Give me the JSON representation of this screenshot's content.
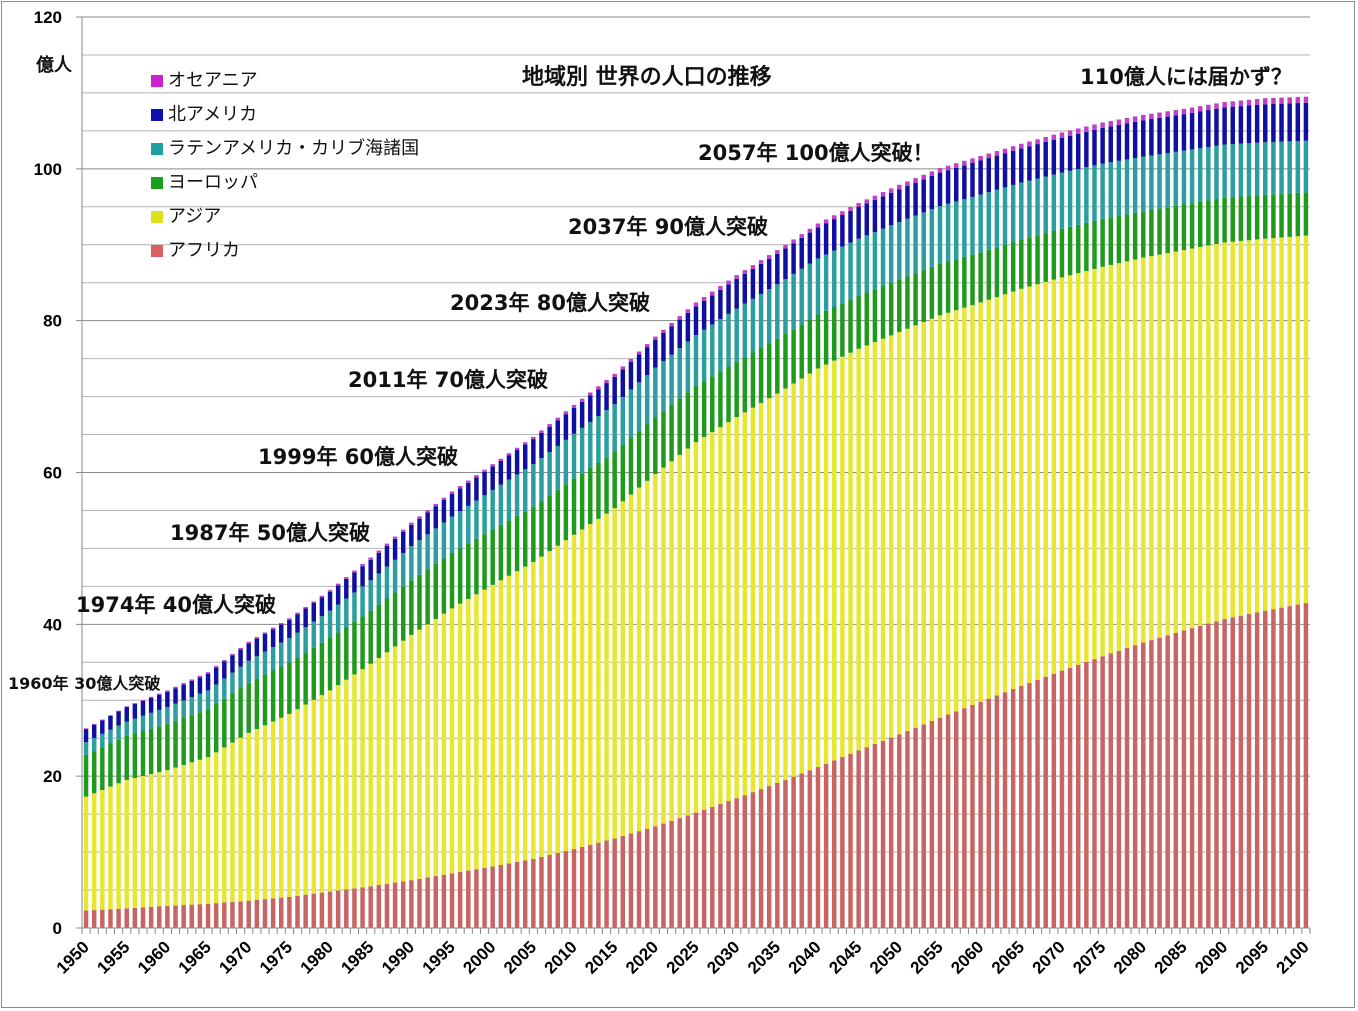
{
  "chart_data": {
    "type": "bar",
    "stacked": true,
    "title": "地域別 世界の人口の推移",
    "ylabel": "億人",
    "xlabel": "",
    "ylim": [
      0,
      120
    ],
    "yticks": [
      0,
      20,
      40,
      60,
      80,
      100,
      120
    ],
    "xtick_labels": [
      "1950",
      "1955",
      "1960",
      "1965",
      "1970",
      "1975",
      "1980",
      "1985",
      "1990",
      "1995",
      "2000",
      "2005",
      "2010",
      "2015",
      "2020",
      "2025",
      "2030",
      "2035",
      "2040",
      "2045",
      "2050",
      "2055",
      "2060",
      "2065",
      "2070",
      "2075",
      "2080",
      "2085",
      "2090",
      "2095",
      "2100"
    ],
    "grid": true,
    "legend_position": "top-left",
    "x_start": 1950,
    "x_end": 2100,
    "anchor_years": [
      1950,
      1955,
      1960,
      1965,
      1970,
      1975,
      1980,
      1985,
      1990,
      1995,
      2000,
      2005,
      2010,
      2015,
      2020,
      2025,
      2030,
      2035,
      2040,
      2045,
      2050,
      2055,
      2060,
      2065,
      2070,
      2075,
      2080,
      2085,
      2090,
      2095,
      2100
    ],
    "series": [
      {
        "name": "アフリカ",
        "color": "#c96464",
        "values": [
          2.3,
          2.6,
          2.9,
          3.2,
          3.6,
          4.1,
          4.8,
          5.5,
          6.3,
          7.2,
          8.1,
          9.1,
          10.4,
          11.8,
          13.4,
          15.2,
          17.1,
          19.1,
          21.2,
          23.4,
          25.5,
          27.7,
          29.8,
          31.9,
          33.9,
          35.8,
          37.6,
          39.2,
          40.7,
          41.8,
          42.8
        ]
      },
      {
        "name": "アジア",
        "color": "#e6e633",
        "values": [
          15.0,
          16.9,
          17.9,
          19.3,
          22.1,
          24.1,
          26.5,
          29.3,
          32.3,
          34.9,
          37.1,
          39.1,
          41.4,
          43.5,
          46.4,
          48.8,
          50.2,
          51.3,
          52.5,
          52.9,
          53.0,
          53.0,
          52.6,
          52.3,
          51.8,
          51.3,
          50.7,
          50.1,
          49.6,
          49.0,
          48.4
        ]
      },
      {
        "name": "ヨーロッパ",
        "color": "#1f9a1f",
        "values": [
          5.5,
          5.8,
          6.1,
          6.3,
          6.6,
          6.8,
          6.9,
          7.0,
          7.2,
          7.3,
          7.3,
          7.3,
          7.4,
          7.4,
          7.5,
          7.4,
          7.3,
          7.2,
          7.1,
          7.0,
          6.9,
          6.8,
          6.6,
          6.5,
          6.4,
          6.3,
          6.1,
          6.0,
          5.9,
          5.8,
          5.7
        ]
      },
      {
        "name": "ラテンアメリカ・カリブ海諸国",
        "color": "#2b9fa0",
        "values": [
          1.7,
          1.9,
          2.2,
          2.5,
          2.9,
          3.2,
          3.6,
          4.0,
          4.5,
          4.8,
          5.2,
          5.6,
          5.9,
          6.3,
          6.5,
          6.7,
          7.0,
          7.2,
          7.4,
          7.5,
          7.6,
          7.6,
          7.6,
          7.5,
          7.4,
          7.3,
          7.2,
          7.1,
          7.0,
          6.9,
          6.8
        ]
      },
      {
        "name": "北アメリカ",
        "color": "#1010a0",
        "values": [
          1.7,
          1.9,
          2.0,
          2.2,
          2.3,
          2.4,
          2.5,
          2.7,
          2.8,
          3.0,
          3.1,
          3.3,
          3.4,
          3.6,
          3.7,
          3.8,
          3.9,
          4.0,
          4.1,
          4.2,
          4.3,
          4.4,
          4.5,
          4.5,
          4.6,
          4.7,
          4.8,
          4.8,
          4.9,
          5.0,
          5.0
        ]
      },
      {
        "name": "オセアニア",
        "color": "#c040c8",
        "values": [
          0.1,
          0.1,
          0.2,
          0.2,
          0.2,
          0.2,
          0.2,
          0.3,
          0.3,
          0.3,
          0.3,
          0.3,
          0.4,
          0.4,
          0.4,
          0.5,
          0.5,
          0.5,
          0.5,
          0.5,
          0.6,
          0.6,
          0.6,
          0.6,
          0.7,
          0.7,
          0.7,
          0.7,
          0.7,
          0.8,
          0.8
        ]
      }
    ],
    "legend_order": [
      "オセアニア",
      "北アメリカ",
      "ラテンアメリカ・カリブ海諸国",
      "ヨーロッパ",
      "アジア",
      "アフリカ"
    ],
    "legend_colors": {
      "オセアニア": "#cc22cc",
      "北アメリカ": "#1010b0",
      "ラテンアメリカ・カリブ海諸国": "#1fa0a0",
      "ヨーロッパ": "#18a018",
      "アジア": "#e0e020",
      "アフリカ": "#d86060"
    },
    "annotations": [
      {
        "text": "1960年 30億人突破",
        "year": 1960,
        "value": 30
      },
      {
        "text": "1974年 40億人突破",
        "year": 1974,
        "value": 40
      },
      {
        "text": "1987年 50億人突破",
        "year": 1987,
        "value": 50
      },
      {
        "text": "1999年 60億人突破",
        "year": 1999,
        "value": 60
      },
      {
        "text": "2011年 70億人突破",
        "year": 2011,
        "value": 70
      },
      {
        "text": "2023年 80億人突破",
        "year": 2023,
        "value": 80
      },
      {
        "text": "2037年 90億人突破",
        "year": 2037,
        "value": 90
      },
      {
        "text": "2057年 100億人突破！",
        "year": 2057,
        "value": 100
      },
      {
        "text": "110億人には届かず？",
        "year": 2100,
        "value": 110
      }
    ]
  }
}
